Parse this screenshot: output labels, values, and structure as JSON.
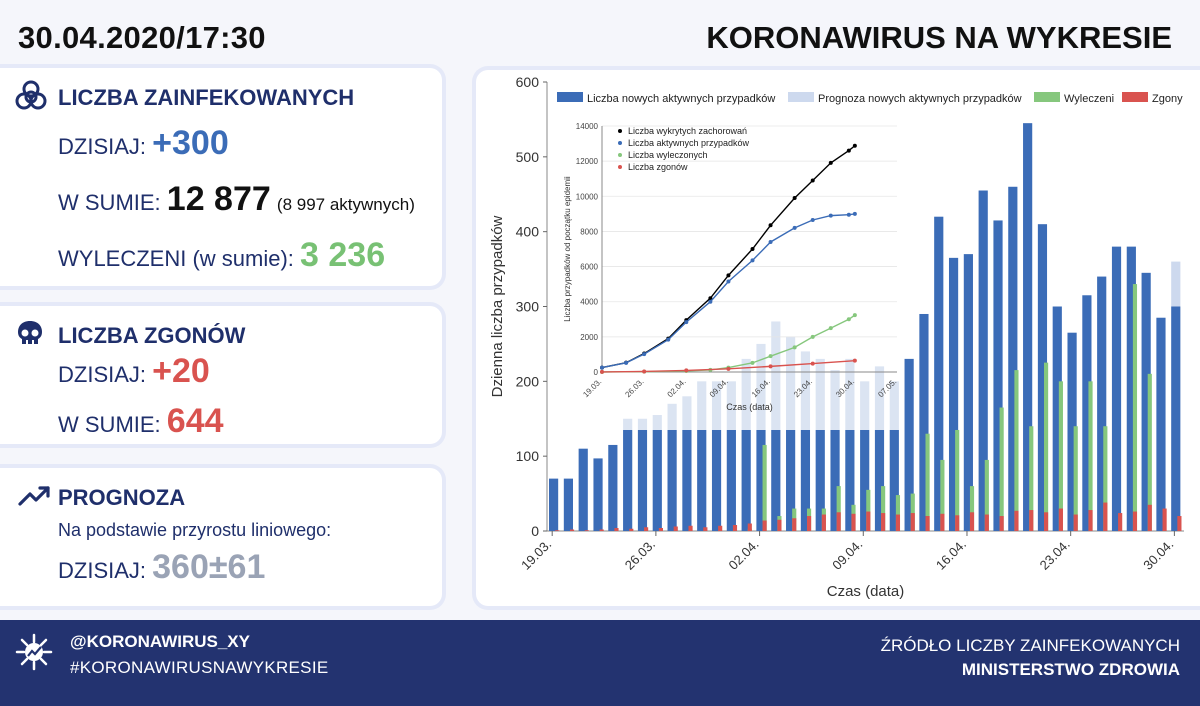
{
  "header": {
    "date": "30.04.2020/17:30",
    "title": "KORONAWIRUS NA WYKRESIE"
  },
  "infected": {
    "title": "LICZBA ZAINFEKOWANYCH",
    "today_label": "DZISIAJ:",
    "today_value": "+300",
    "total_label": "W SUMIE:",
    "total_value": "12 877",
    "active_note": "(8 997 aktywnych)",
    "recovered_label": "WYLECZENI (w sumie):",
    "recovered_value": "3 236"
  },
  "deaths": {
    "title": "LICZBA ZGONÓW",
    "today_label": "DZISIAJ:",
    "today_value": "+20",
    "total_label": "W SUMIE:",
    "total_value": "644"
  },
  "forecast": {
    "title": "PROGNOZA",
    "basis": "Na podstawie przyrostu liniowego:",
    "today_label": "DZISIAJ:",
    "today_value": "360±61"
  },
  "footer": {
    "handle": "@KORONAWIRUS_XY",
    "hashtag": "#KORONAWIRUSNAWYKRESIE",
    "source_line1": "ŹRÓDŁO LICZBY ZAINFEKOWANYCH",
    "source_line2": "MINISTERSTWO ZDROWIA"
  },
  "colors": {
    "new_active": "#3b6cb7",
    "forecast": "#cdd9ee",
    "recovered": "#86c77d",
    "deaths": "#d9534f",
    "total_line": "#000000"
  },
  "chart_data": [
    {
      "type": "bar",
      "xlabel": "Czas (data)",
      "ylabel": "Dzienna liczba przypadków",
      "ylim": [
        0,
        600
      ],
      "yticks": [
        0,
        100,
        200,
        300,
        400,
        500,
        600
      ],
      "xticks": [
        "19.03.",
        "26.03.",
        "02.04.",
        "09.04.",
        "16.04.",
        "23.04.",
        "30.04."
      ],
      "grid": false,
      "legend_position": "top",
      "categories": [
        "19.03.",
        "20.03.",
        "21.03.",
        "22.03.",
        "23.03.",
        "24.03.",
        "25.03.",
        "26.03.",
        "27.03.",
        "28.03.",
        "29.03.",
        "30.03.",
        "31.03.",
        "01.04.",
        "02.04.",
        "03.04.",
        "04.04.",
        "05.04.",
        "06.04.",
        "07.04.",
        "08.04.",
        "09.04.",
        "10.04.",
        "11.04.",
        "12.04.",
        "13.04.",
        "14.04.",
        "15.04.",
        "16.04.",
        "17.04.",
        "18.04.",
        "19.04.",
        "20.04.",
        "21.04.",
        "22.04.",
        "23.04.",
        "24.04.",
        "25.04.",
        "26.04.",
        "27.04.",
        "28.04.",
        "29.04.",
        "30.04."
      ],
      "series": [
        {
          "name": "Liczba nowych aktywnych przypadków",
          "values": [
            70,
            70,
            110,
            97,
            115,
            150,
            150,
            155,
            170,
            180,
            200,
            200,
            200,
            230,
            250,
            280,
            260,
            240,
            230,
            215,
            230,
            200,
            220,
            200,
            230,
            290,
            420,
            365,
            370,
            455,
            415,
            460,
            545,
            410,
            300,
            265,
            315,
            340,
            380,
            380,
            345,
            285,
            300
          ]
        },
        {
          "name": "Prognoza nowych aktywnych przypadków",
          "values": [
            null,
            null,
            null,
            null,
            null,
            null,
            null,
            null,
            null,
            null,
            null,
            null,
            null,
            null,
            null,
            null,
            null,
            null,
            null,
            null,
            null,
            null,
            null,
            null,
            null,
            null,
            null,
            null,
            null,
            null,
            null,
            null,
            null,
            null,
            null,
            null,
            null,
            null,
            null,
            null,
            null,
            null,
            360
          ]
        },
        {
          "name": "Wyleczeni",
          "values": [
            0,
            0,
            0,
            0,
            0,
            0,
            0,
            0,
            0,
            0,
            0,
            0,
            1,
            3,
            115,
            20,
            30,
            30,
            30,
            60,
            35,
            55,
            60,
            48,
            50,
            130,
            95,
            135,
            60,
            95,
            165,
            215,
            140,
            225,
            200,
            140,
            200,
            140,
            0,
            330,
            210,
            0,
            0
          ]
        },
        {
          "name": "Zgony",
          "values": [
            1,
            2,
            1,
            2,
            4,
            3,
            5,
            4,
            6,
            7,
            5,
            7,
            8,
            10,
            14,
            15,
            17,
            20,
            22,
            25,
            23,
            26,
            24,
            22,
            24,
            20,
            23,
            21,
            25,
            22,
            20,
            27,
            28,
            25,
            30,
            22,
            28,
            38,
            24,
            26,
            35,
            30,
            20
          ]
        }
      ]
    },
    {
      "type": "line",
      "xlabel": "Czas (data)",
      "ylabel": "Liczba przypadków od początku epidemii",
      "ylim": [
        0,
        14000
      ],
      "yticks": [
        0,
        2000,
        4000,
        6000,
        8000,
        10000,
        12000,
        14000
      ],
      "xticks": [
        "19.03.",
        "26.03.",
        "02.04.",
        "09.04.",
        "16.04.",
        "23.04.",
        "30.04.",
        "07.05."
      ],
      "legend_position": "top-left",
      "series": [
        {
          "name": "Liczba wykrytych zachorowań",
          "x_days": [
            0,
            4,
            7,
            11,
            14,
            18,
            21,
            25,
            28,
            32,
            35,
            38,
            41,
            42
          ],
          "values": [
            250,
            530,
            1050,
            1900,
            2950,
            4200,
            5500,
            7000,
            8350,
            9900,
            10900,
            11900,
            12600,
            12877
          ]
        },
        {
          "name": "Liczba aktywnych przypadków",
          "x_days": [
            0,
            4,
            7,
            11,
            14,
            18,
            21,
            25,
            28,
            32,
            35,
            38,
            41,
            42
          ],
          "values": [
            250,
            520,
            1020,
            1840,
            2840,
            4000,
            5150,
            6350,
            7400,
            8200,
            8650,
            8900,
            8950,
            8997
          ]
        },
        {
          "name": "Liczba wyleczonych",
          "x_days": [
            0,
            7,
            14,
            18,
            21,
            25,
            28,
            32,
            35,
            38,
            41,
            42
          ],
          "values": [
            0,
            20,
            60,
            120,
            250,
            520,
            900,
            1400,
            2000,
            2500,
            3000,
            3236
          ]
        },
        {
          "name": "Liczba zgonów",
          "x_days": [
            0,
            7,
            14,
            21,
            28,
            35,
            42
          ],
          "values": [
            5,
            30,
            90,
            180,
            320,
            480,
            644
          ]
        }
      ]
    }
  ]
}
